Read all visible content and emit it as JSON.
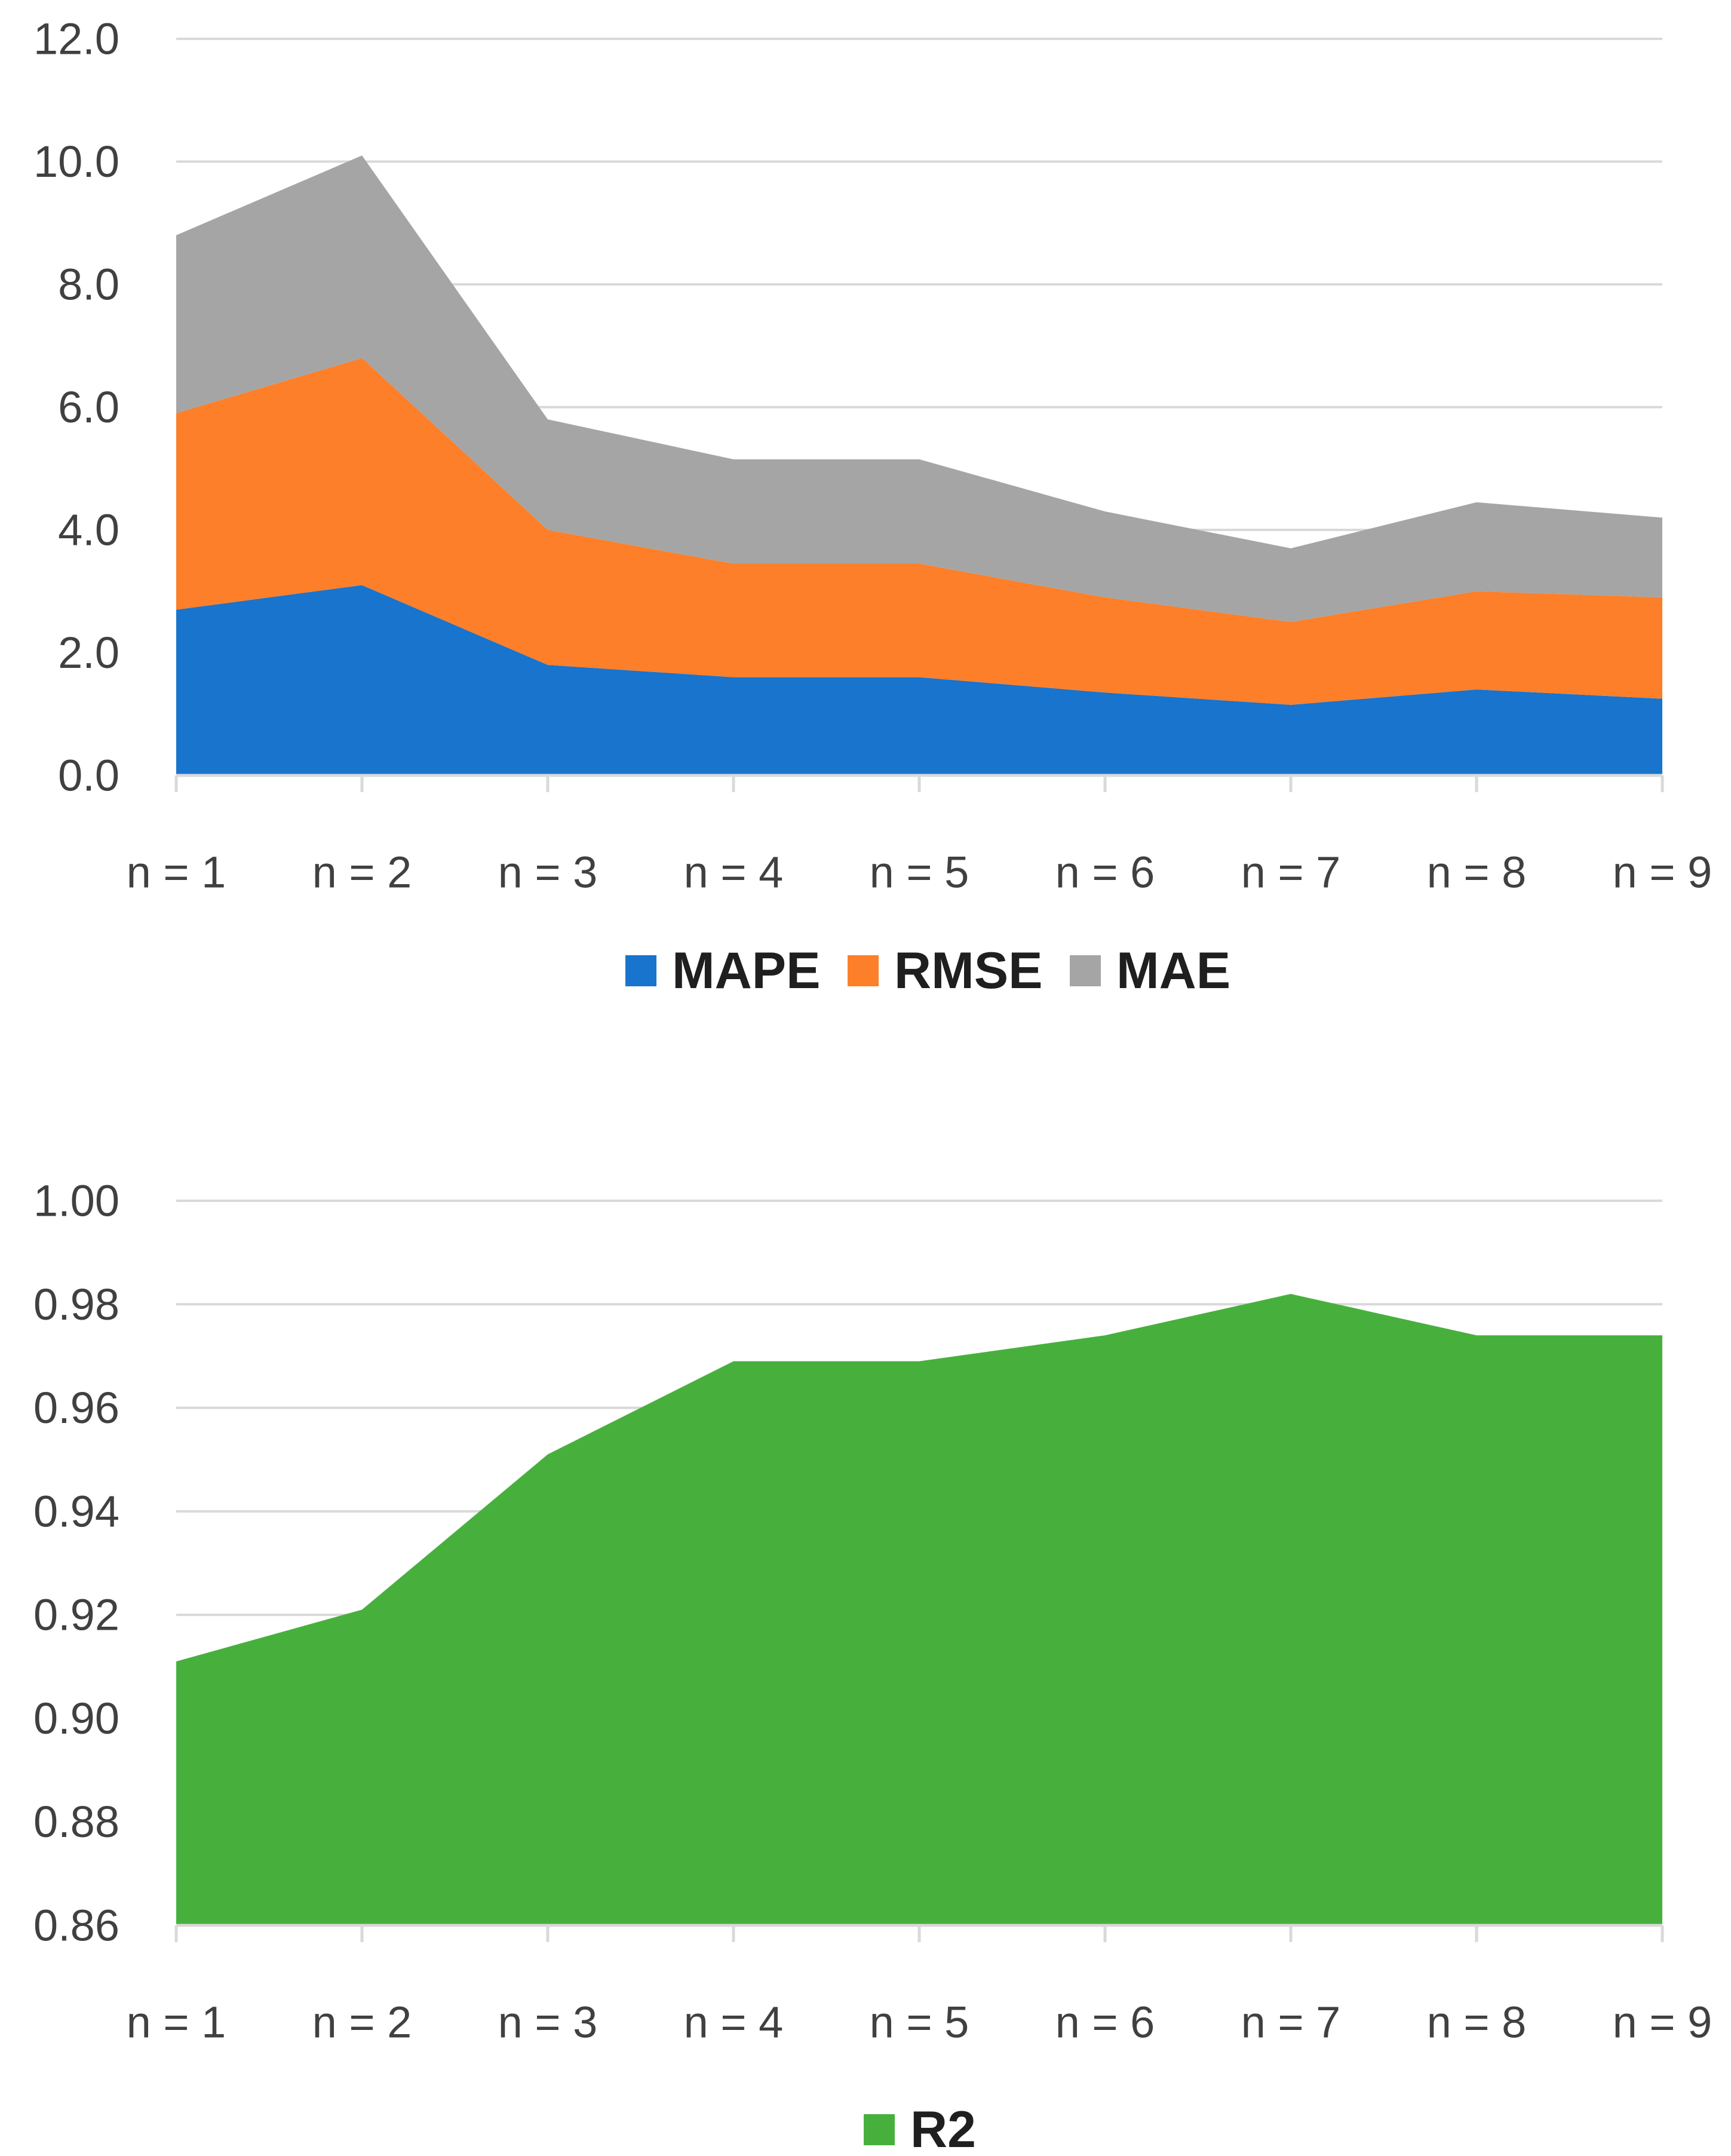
{
  "chart_data": [
    {
      "type": "area",
      "stacked": true,
      "categories": [
        "n = 1",
        "n = 2",
        "n = 3",
        "n = 4",
        "n = 5",
        "n = 6",
        "n = 7",
        "n = 8",
        "n = 9"
      ],
      "series": [
        {
          "name": "MAPE",
          "color": "#1874cd",
          "values": [
            2.7,
            3.1,
            1.8,
            1.6,
            1.6,
            1.35,
            1.15,
            1.4,
            1.25
          ]
        },
        {
          "name": "RMSE",
          "color": "#fd7f29",
          "values": [
            3.2,
            3.7,
            2.2,
            1.85,
            1.85,
            1.55,
            1.35,
            1.6,
            1.65
          ]
        },
        {
          "name": "MAE",
          "color": "#a5a5a5",
          "values": [
            2.9,
            3.3,
            1.8,
            1.7,
            1.7,
            1.4,
            1.2,
            1.45,
            1.3
          ]
        }
      ],
      "ylim": [
        0,
        12
      ],
      "yticks": [
        "0.0",
        "2.0",
        "4.0",
        "6.0",
        "8.0",
        "10.0",
        "12.0"
      ],
      "legend_position": "bottom",
      "grid": true
    },
    {
      "type": "area",
      "categories": [
        "n = 1",
        "n = 2",
        "n = 3",
        "n = 4",
        "n = 5",
        "n = 6",
        "n = 7",
        "n = 8",
        "n = 9"
      ],
      "series": [
        {
          "name": "R2",
          "color": "#47b03d",
          "values": [
            0.911,
            0.921,
            0.951,
            0.969,
            0.969,
            0.974,
            0.982,
            0.974,
            0.974
          ]
        }
      ],
      "ylim": [
        0.86,
        1.0
      ],
      "yticks": [
        "0.86",
        "0.88",
        "0.90",
        "0.92",
        "0.94",
        "0.96",
        "0.98",
        "1.00"
      ],
      "legend_position": "bottom",
      "grid": true
    }
  ]
}
